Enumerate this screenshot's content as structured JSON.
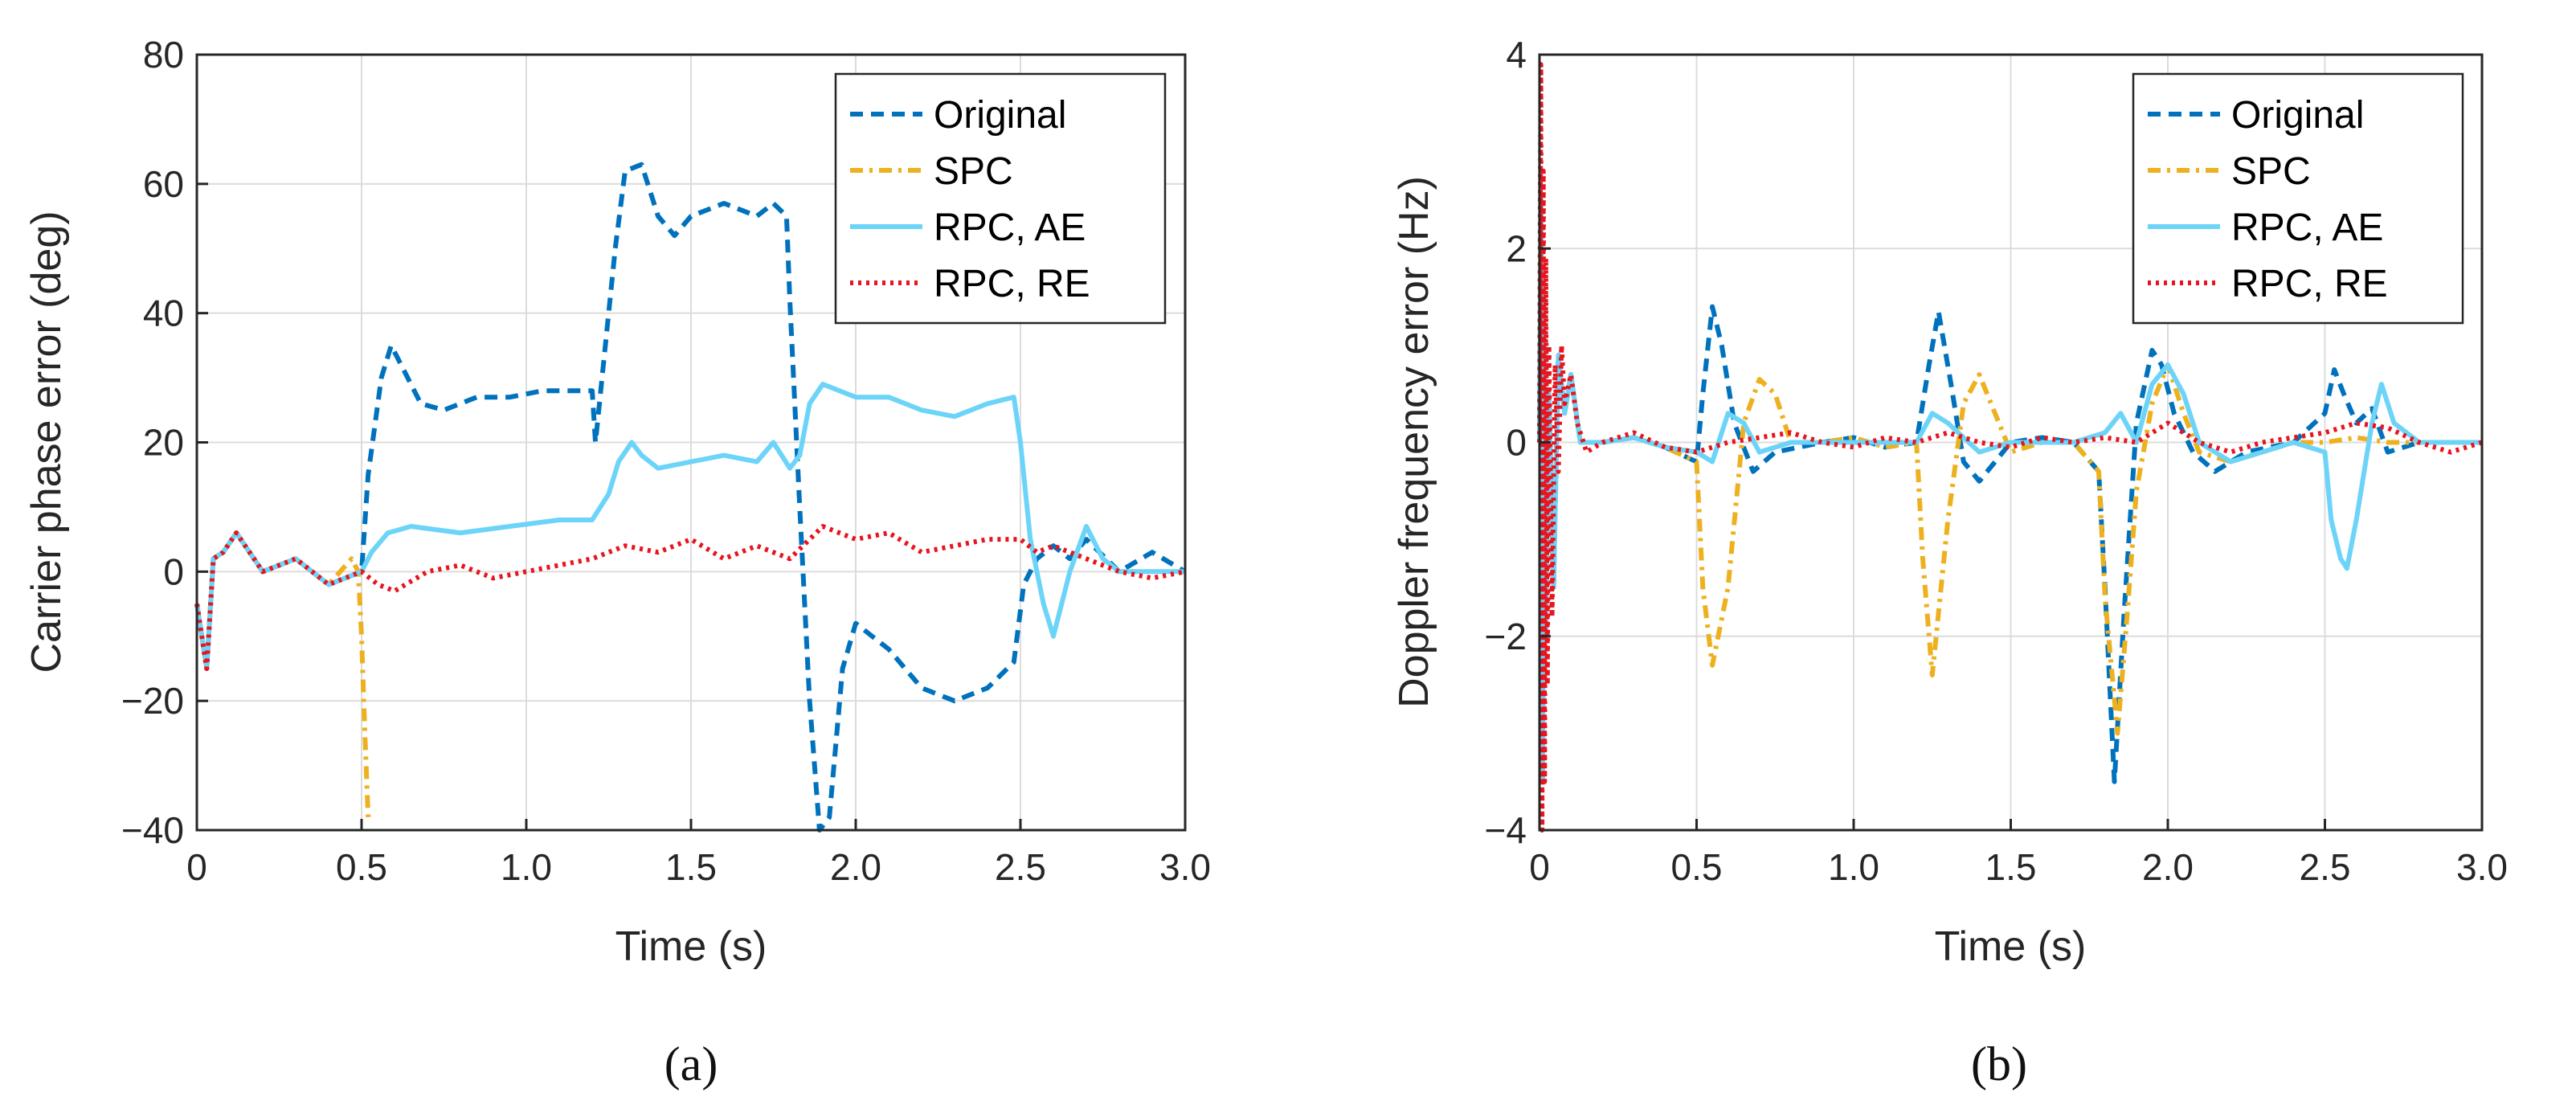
{
  "chart_data": [
    {
      "type": "line",
      "panel_label": "a",
      "xlabel": "Time (s)",
      "ylabel": "Carrier phase error (deg)",
      "xlim": [
        0,
        3.0
      ],
      "ylim": [
        -40,
        80
      ],
      "xticks": [
        0,
        0.5,
        1.0,
        1.5,
        2.0,
        2.5,
        3.0
      ],
      "xtick_labels": [
        "0",
        "0.5",
        "1.0",
        "1.5",
        "2.0",
        "2.5",
        "3.0"
      ],
      "yticks": [
        -40,
        -20,
        0,
        20,
        40,
        60,
        80
      ],
      "ytick_labels": [
        "−40",
        "−20",
        "0",
        "20",
        "40",
        "60",
        "80"
      ],
      "grid": true,
      "legend_position": "top-right",
      "series": [
        {
          "name": "Original",
          "color": "#0072BD",
          "style": "dashed",
          "x": [
            0,
            0.03,
            0.05,
            0.08,
            0.12,
            0.2,
            0.3,
            0.4,
            0.5,
            0.52,
            0.56,
            0.59,
            0.62,
            0.68,
            0.75,
            0.85,
            0.95,
            1.05,
            1.15,
            1.2,
            1.21,
            1.24,
            1.27,
            1.3,
            1.35,
            1.4,
            1.45,
            1.5,
            1.6,
            1.7,
            1.75,
            1.79,
            1.8,
            1.83,
            1.86,
            1.89,
            1.92,
            1.96,
            2.0,
            2.05,
            2.1,
            2.2,
            2.3,
            2.4,
            2.48,
            2.51,
            2.55,
            2.6,
            2.65,
            2.7,
            2.8,
            2.9,
            3.0
          ],
          "y": [
            -5,
            -15,
            2,
            3,
            6,
            0,
            2,
            -2,
            0,
            15,
            30,
            35,
            32,
            26,
            25,
            27,
            27,
            28,
            28,
            28,
            20,
            35,
            50,
            62,
            63,
            55,
            52,
            55,
            57,
            55,
            57,
            55,
            42,
            10,
            -20,
            -40,
            -38,
            -15,
            -8,
            -10,
            -12,
            -18,
            -20,
            -18,
            -14,
            -2,
            2,
            4,
            2,
            5,
            0,
            3,
            0
          ]
        },
        {
          "name": "SPC",
          "color": "#EDB120",
          "style": "dashdot",
          "x": [
            0,
            0.03,
            0.05,
            0.08,
            0.12,
            0.2,
            0.3,
            0.4,
            0.47,
            0.49,
            0.5,
            0.51,
            0.52
          ],
          "y": [
            -5,
            -15,
            2,
            3,
            6,
            0,
            2,
            -2,
            2,
            0,
            -10,
            -25,
            -38
          ]
        },
        {
          "name": "RPC, AE",
          "color": "#6CD4F8",
          "style": "solid",
          "x": [
            0,
            0.03,
            0.05,
            0.08,
            0.12,
            0.2,
            0.3,
            0.4,
            0.5,
            0.53,
            0.58,
            0.65,
            0.8,
            0.95,
            1.1,
            1.2,
            1.25,
            1.28,
            1.32,
            1.35,
            1.4,
            1.5,
            1.6,
            1.7,
            1.75,
            1.8,
            1.83,
            1.86,
            1.9,
            1.95,
            2.0,
            2.1,
            2.2,
            2.3,
            2.4,
            2.48,
            2.5,
            2.53,
            2.57,
            2.6,
            2.65,
            2.7,
            2.75,
            2.8,
            2.9,
            3.0
          ],
          "y": [
            -5,
            -15,
            2,
            3,
            6,
            0,
            2,
            -2,
            0,
            3,
            6,
            7,
            6,
            7,
            8,
            8,
            12,
            17,
            20,
            18,
            16,
            17,
            18,
            17,
            20,
            16,
            18,
            26,
            29,
            28,
            27,
            27,
            25,
            24,
            26,
            27,
            20,
            5,
            -5,
            -10,
            0,
            7,
            2,
            0,
            0,
            0
          ]
        },
        {
          "name": "RPC, RE",
          "color": "#E8141E",
          "style": "dotted",
          "x": [
            0,
            0.03,
            0.05,
            0.08,
            0.12,
            0.2,
            0.3,
            0.4,
            0.5,
            0.55,
            0.6,
            0.7,
            0.8,
            0.9,
            1.0,
            1.1,
            1.2,
            1.3,
            1.4,
            1.5,
            1.6,
            1.7,
            1.8,
            1.9,
            2.0,
            2.1,
            2.2,
            2.3,
            2.4,
            2.5,
            2.55,
            2.6,
            2.7,
            2.8,
            2.9,
            3.0
          ],
          "y": [
            -5,
            -15,
            2,
            3,
            6,
            0,
            2,
            -2,
            0,
            -2,
            -3,
            0,
            1,
            -1,
            0,
            1,
            2,
            4,
            3,
            5,
            2,
            4,
            2,
            7,
            5,
            6,
            3,
            4,
            5,
            5,
            3,
            4,
            2,
            0,
            -1,
            0
          ]
        }
      ]
    },
    {
      "type": "line",
      "panel_label": "b",
      "xlabel": "Time (s)",
      "ylabel": "Doppler frequency error (Hz)",
      "xlim": [
        0,
        3.0
      ],
      "ylim": [
        -4,
        4
      ],
      "xticks": [
        0,
        0.5,
        1.0,
        1.5,
        2.0,
        2.5,
        3.0
      ],
      "xtick_labels": [
        "0",
        "0.5",
        "1.0",
        "1.5",
        "2.0",
        "2.5",
        "3.0"
      ],
      "yticks": [
        -4,
        -2,
        0,
        2,
        4
      ],
      "ytick_labels": [
        "−4",
        "−2",
        "0",
        "2",
        "4"
      ],
      "grid": true,
      "legend_position": "top-right",
      "series": [
        {
          "name": "Original",
          "color": "#0072BD",
          "style": "dashed",
          "x": [
            0,
            0.005,
            0.01,
            0.015,
            0.02,
            0.03,
            0.045,
            0.06,
            0.08,
            0.1,
            0.13,
            0.2,
            0.3,
            0.4,
            0.5,
            0.52,
            0.55,
            0.58,
            0.62,
            0.68,
            0.75,
            0.9,
            1.0,
            1.1,
            1.2,
            1.24,
            1.27,
            1.31,
            1.35,
            1.4,
            1.5,
            1.6,
            1.7,
            1.78,
            1.8,
            1.83,
            1.86,
            1.9,
            1.95,
            1.98,
            2.02,
            2.08,
            2.15,
            2.25,
            2.4,
            2.5,
            2.53,
            2.56,
            2.6,
            2.65,
            2.7,
            2.8,
            2.9,
            3.0
          ],
          "y": [
            0,
            2.5,
            -3.5,
            1.5,
            -2,
            0.5,
            -1.5,
            0.9,
            0.3,
            0.7,
            0.0,
            0.0,
            0.05,
            -0.05,
            -0.2,
            0.5,
            1.4,
            1.0,
            0.2,
            -0.3,
            -0.1,
            0.0,
            0.05,
            -0.05,
            0.0,
            0.8,
            1.35,
            0.6,
            -0.2,
            -0.4,
            0.0,
            0.05,
            0.0,
            -0.3,
            -1.5,
            -3.5,
            -1.8,
            0.2,
            0.95,
            0.8,
            0.3,
            -0.1,
            -0.3,
            -0.1,
            0.0,
            0.3,
            0.75,
            0.5,
            0.2,
            0.35,
            -0.1,
            0.0,
            0.0,
            0.0
          ]
        },
        {
          "name": "SPC",
          "color": "#EDB120",
          "style": "dashdot",
          "x": [
            0,
            0.005,
            0.01,
            0.015,
            0.02,
            0.03,
            0.045,
            0.06,
            0.08,
            0.1,
            0.13,
            0.2,
            0.3,
            0.4,
            0.5,
            0.52,
            0.55,
            0.6,
            0.65,
            0.7,
            0.75,
            0.8,
            0.9,
            1.0,
            1.1,
            1.2,
            1.22,
            1.25,
            1.3,
            1.35,
            1.4,
            1.45,
            1.5,
            1.6,
            1.7,
            1.78,
            1.8,
            1.84,
            1.87,
            1.9,
            1.95,
            2.0,
            2.05,
            2.1,
            2.2,
            2.3,
            2.4,
            2.5,
            2.6,
            2.7,
            2.8,
            2.9,
            3.0
          ],
          "y": [
            0,
            2.5,
            -3.5,
            1.5,
            -2,
            0.5,
            -1.5,
            0.9,
            0.3,
            0.7,
            0.0,
            0.0,
            0.05,
            -0.05,
            -0.2,
            -1.5,
            -2.3,
            -1.5,
            0.2,
            0.65,
            0.5,
            0.0,
            0.0,
            0.05,
            -0.05,
            0.0,
            -1.2,
            -2.4,
            -0.8,
            0.4,
            0.7,
            0.3,
            -0.1,
            0.0,
            0.0,
            -0.3,
            -1.6,
            -3.0,
            -1.8,
            -0.5,
            0.4,
            0.8,
            0.3,
            -0.1,
            -0.2,
            -0.1,
            0.0,
            0.0,
            0.05,
            0.0,
            0.0,
            0.0,
            0.0
          ]
        },
        {
          "name": "RPC, AE",
          "color": "#6CD4F8",
          "style": "solid",
          "x": [
            0,
            0.005,
            0.01,
            0.015,
            0.02,
            0.03,
            0.045,
            0.06,
            0.08,
            0.1,
            0.13,
            0.2,
            0.3,
            0.4,
            0.5,
            0.55,
            0.6,
            0.65,
            0.7,
            0.8,
            1.0,
            1.2,
            1.25,
            1.3,
            1.4,
            1.5,
            1.7,
            1.8,
            1.85,
            1.9,
            1.95,
            2.0,
            2.05,
            2.1,
            2.2,
            2.3,
            2.4,
            2.5,
            2.52,
            2.55,
            2.57,
            2.6,
            2.65,
            2.68,
            2.72,
            2.8,
            2.9,
            3.0
          ],
          "y": [
            0,
            2.5,
            -3.5,
            1.5,
            -2,
            0.5,
            -1.5,
            0.9,
            0.3,
            0.7,
            0.0,
            0.0,
            0.05,
            -0.05,
            -0.1,
            -0.2,
            0.3,
            0.2,
            -0.1,
            0.0,
            0.0,
            0.0,
            0.3,
            0.2,
            -0.1,
            0.0,
            0.0,
            0.1,
            0.3,
            0.0,
            0.6,
            0.8,
            0.5,
            0.0,
            -0.2,
            -0.1,
            0.0,
            -0.1,
            -0.8,
            -1.2,
            -1.3,
            -0.8,
            0.2,
            0.6,
            0.2,
            0.0,
            0.0,
            0.0
          ]
        },
        {
          "name": "RPC, RE",
          "color": "#E8141E",
          "style": "dotted",
          "x": [
            0,
            0.004,
            0.008,
            0.012,
            0.016,
            0.02,
            0.025,
            0.03,
            0.04,
            0.05,
            0.06,
            0.07,
            0.08,
            0.1,
            0.12,
            0.15,
            0.2,
            0.3,
            0.4,
            0.5,
            0.6,
            0.7,
            0.8,
            0.9,
            1.0,
            1.1,
            1.2,
            1.3,
            1.4,
            1.5,
            1.6,
            1.7,
            1.8,
            1.9,
            2.0,
            2.1,
            2.2,
            2.3,
            2.4,
            2.5,
            2.6,
            2.7,
            2.8,
            2.9,
            3.0
          ],
          "y": [
            0,
            3.9,
            -4.0,
            2.8,
            -3.5,
            1.9,
            -2.5,
            1.0,
            -1.8,
            0.8,
            -0.3,
            1.0,
            0.4,
            0.7,
            0.2,
            -0.1,
            0.0,
            0.1,
            -0.05,
            -0.1,
            0.0,
            0.05,
            0.1,
            0.0,
            -0.05,
            0.05,
            0.0,
            0.1,
            0.0,
            -0.05,
            0.05,
            0.0,
            0.05,
            0.0,
            0.2,
            0.0,
            -0.1,
            0.0,
            0.05,
            0.1,
            0.2,
            0.15,
            0.0,
            -0.1,
            0.0
          ]
        }
      ]
    }
  ],
  "captions": {
    "a": "(a)",
    "b": "(b)"
  }
}
